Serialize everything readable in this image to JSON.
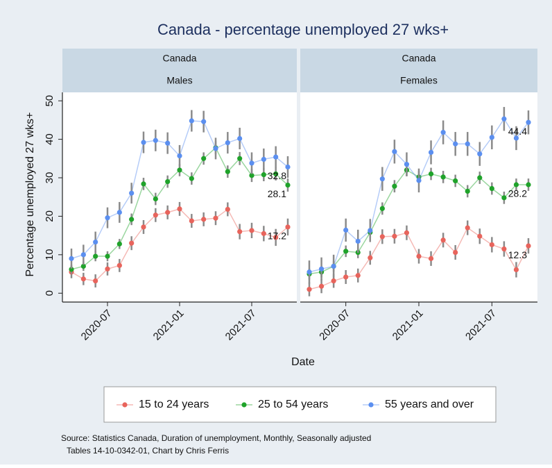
{
  "title": "Canada  - percentage unemployed 27 wks+",
  "x_label": "Date",
  "y_label": "Percentage unemployed 27 wks+",
  "source": [
    "Source: Statistics Canada, Duration of unemployment, Monthly, Seasonally adjusted",
    "Tables 14-10-0342-01, Chart by Chris Ferris"
  ],
  "chart_data": [
    {
      "type": "line",
      "strip": [
        "Canada",
        "Males"
      ],
      "x": [
        "2020-04",
        "2020-05",
        "2020-06",
        "2020-07",
        "2020-08",
        "2020-09",
        "2020-10",
        "2020-11",
        "2020-12",
        "2021-01",
        "2021-02",
        "2021-03",
        "2021-04",
        "2021-05",
        "2021-06",
        "2021-07",
        "2021-08",
        "2021-09",
        "2021-10"
      ],
      "xticks": [
        "2020-07",
        "2021-01",
        "2021-07"
      ],
      "ylim": [
        -2.3,
        52.2
      ],
      "yticks": [
        0,
        10,
        20,
        30,
        40,
        50
      ],
      "series": [
        {
          "name": "15 to 24 years",
          "color": "#e8645c",
          "values": [
            5.5,
            3.7,
            3.2,
            6.3,
            7.2,
            13,
            17.2,
            20.3,
            21,
            21.9,
            18.8,
            19.2,
            19.5,
            21.8,
            16,
            16.3,
            15.5,
            14.5,
            17.2
          ],
          "errors": [
            1.6,
            1.6,
            1.7,
            1.7,
            1.7,
            1.8,
            1.8,
            1.8,
            1.8,
            1.8,
            1.8,
            1.8,
            1.8,
            1.8,
            2,
            2,
            2,
            2.2,
            2.2
          ]
        },
        {
          "name": "25 to 54 years",
          "color": "#1fa32a",
          "values": [
            6.2,
            7,
            9.6,
            9.6,
            12.8,
            19.2,
            28.4,
            24.5,
            29,
            32,
            29.8,
            35,
            37.8,
            31.6,
            35,
            30.6,
            30.8,
            31,
            28.1
          ],
          "errors": [
            1.2,
            1.2,
            1.3,
            1.3,
            1.3,
            1.5,
            1.6,
            1.6,
            1.6,
            1.6,
            1.6,
            1.6,
            1.7,
            1.6,
            1.7,
            1.7,
            1.7,
            1.7,
            1.7
          ]
        },
        {
          "name": "55 years and over",
          "color": "#5b8ff0",
          "values": [
            9,
            10,
            13.3,
            19.6,
            21,
            26,
            39.2,
            39.7,
            39,
            35.7,
            44.8,
            44.6,
            37.6,
            39.1,
            40.2,
            33.8,
            34.8,
            35.4,
            32.8
          ],
          "errors": [
            2.6,
            2.6,
            2.7,
            2.7,
            2.7,
            2.7,
            2.8,
            2.8,
            2.8,
            2.8,
            2.8,
            2.8,
            2.8,
            2.8,
            2.8,
            2.8,
            2.8,
            2.8,
            2.8
          ]
        }
      ]
    },
    {
      "type": "line",
      "strip": [
        "Canada",
        "Females"
      ],
      "x": [
        "2020-04",
        "2020-05",
        "2020-06",
        "2020-07",
        "2020-08",
        "2020-09",
        "2020-10",
        "2020-11",
        "2020-12",
        "2021-01",
        "2021-02",
        "2021-03",
        "2021-04",
        "2021-05",
        "2021-06",
        "2021-07",
        "2021-08",
        "2021-09",
        "2021-10"
      ],
      "xticks": [
        "2020-07",
        "2021-01",
        "2021-07"
      ],
      "ylim": [
        -2.3,
        52.2
      ],
      "series": [
        {
          "name": "15 to 24 years",
          "color": "#e8645c",
          "values": [
            1,
            1.8,
            3.2,
            4.2,
            4.6,
            9.2,
            14.7,
            14.8,
            15.7,
            9.6,
            9,
            13.8,
            10.6,
            17,
            14.8,
            12.6,
            11.5,
            6.1,
            12.3
          ],
          "errors": [
            1.8,
            1.8,
            1.8,
            1.8,
            1.8,
            1.8,
            1.9,
            1.9,
            1.9,
            1.9,
            1.9,
            1.9,
            1.9,
            1.9,
            2,
            2,
            2,
            2,
            2
          ]
        },
        {
          "name": "25 to 54 years",
          "color": "#1fa32a",
          "values": [
            5,
            5.5,
            7,
            10.9,
            10.6,
            15.8,
            22,
            27.8,
            32,
            30.2,
            31,
            30.2,
            29.2,
            26.5,
            30,
            27.2,
            24.8,
            28.2,
            28.2
          ],
          "errors": [
            1.4,
            1.4,
            1.4,
            1.5,
            1.5,
            1.5,
            1.6,
            1.6,
            1.6,
            1.6,
            1.6,
            1.6,
            1.6,
            1.6,
            1.6,
            1.6,
            1.6,
            1.6,
            1.6
          ]
        },
        {
          "name": "55 years and over",
          "color": "#5b8ff0",
          "values": [
            5.5,
            6.3,
            7,
            16.4,
            13.5,
            16.3,
            29.7,
            36.8,
            33.5,
            29.3,
            36.6,
            41.8,
            38.8,
            38.8,
            36.2,
            40.5,
            45.3,
            40.3,
            44.4
          ],
          "errors": [
            3,
            3,
            3,
            3,
            3,
            3,
            3.1,
            3.1,
            3.1,
            3.1,
            3.1,
            3.1,
            3.1,
            3.1,
            3.1,
            3.1,
            3.1,
            3.1,
            3.1
          ]
        }
      ]
    }
  ]
}
